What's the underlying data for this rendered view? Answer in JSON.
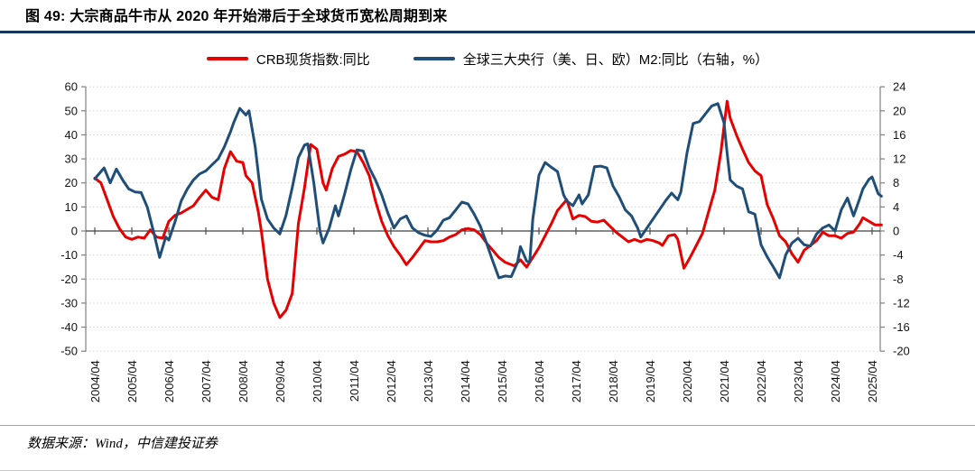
{
  "header": {
    "figure_title": "图 49: 大宗商品牛市从 2020 年开始滞后于全球货币宽松周期到来",
    "rule_color": "#17375e"
  },
  "legend": [
    {
      "label": "CRB现货指数:同比",
      "color": "#e60000"
    },
    {
      "label": "全球三大央行（美、日、欧）M2:同比（右轴，%）",
      "color": "#1f4e79"
    }
  ],
  "footer": {
    "source": "数据来源：Wind，中信建投证券"
  },
  "chart_data": {
    "type": "line",
    "title": "大宗商品牛市从 2020 年开始滞后于全球货币宽松周期到来",
    "grid": "horizontal-dotted",
    "legend_position": "top",
    "x_axis": {
      "tick_labels": [
        "2004/04",
        "2005/04",
        "2006/04",
        "2007/04",
        "2008/04",
        "2009/04",
        "2010/04",
        "2011/04",
        "2012/04",
        "2013/04",
        "2014/04",
        "2015/04",
        "2016/04",
        "2017/04",
        "2018/04",
        "2019/04",
        "2020/04",
        "2021/04",
        "2022/04",
        "2023/04",
        "2024/04",
        "2025/04"
      ]
    },
    "left_axis": {
      "min": -50,
      "max": 60,
      "step": 10,
      "ticks": [
        60,
        50,
        40,
        30,
        20,
        10,
        0,
        -10,
        -20,
        -30,
        -40,
        -50
      ]
    },
    "right_axis": {
      "min": -20,
      "max": 24,
      "step": 4,
      "label": "右轴，%",
      "ticks": [
        24,
        20,
        16,
        12,
        8,
        4,
        0,
        -4,
        -8,
        -12,
        -16,
        -20
      ]
    },
    "series": [
      {
        "name": "CRB现货指数:同比",
        "axis": "left",
        "color": "#e60000",
        "points": [
          [
            "2004/04",
            22
          ],
          [
            "2004/06",
            20
          ],
          [
            "2004/08",
            13
          ],
          [
            "2004/10",
            6
          ],
          [
            "2004/12",
            1
          ],
          [
            "2005/02",
            -2.5
          ],
          [
            "2005/04",
            -3.5
          ],
          [
            "2005/06",
            -2.5
          ],
          [
            "2005/08",
            -3
          ],
          [
            "2005/10",
            0.5
          ],
          [
            "2005/12",
            -2.5
          ],
          [
            "2006/02",
            -3
          ],
          [
            "2006/04",
            4
          ],
          [
            "2006/06",
            6.5
          ],
          [
            "2006/08",
            7.5
          ],
          [
            "2006/10",
            9
          ],
          [
            "2006/12",
            10.5
          ],
          [
            "2007/02",
            14
          ],
          [
            "2007/04",
            17
          ],
          [
            "2007/06",
            14
          ],
          [
            "2007/08",
            13
          ],
          [
            "2007/10",
            26
          ],
          [
            "2007/12",
            33
          ],
          [
            "2008/02",
            29
          ],
          [
            "2008/04",
            28.5
          ],
          [
            "2008/05",
            23
          ],
          [
            "2008/07",
            20
          ],
          [
            "2008/09",
            8
          ],
          [
            "2008/10",
            0
          ],
          [
            "2008/12",
            -20
          ],
          [
            "2009/02",
            -30
          ],
          [
            "2009/04",
            -36
          ],
          [
            "2009/06",
            -33
          ],
          [
            "2009/08",
            -26
          ],
          [
            "2009/10",
            3
          ],
          [
            "2009/12",
            18
          ],
          [
            "2010/02",
            36
          ],
          [
            "2010/04",
            34
          ],
          [
            "2010/06",
            20
          ],
          [
            "2010/07",
            17
          ],
          [
            "2010/09",
            26
          ],
          [
            "2010/11",
            31
          ],
          [
            "2011/01",
            32
          ],
          [
            "2011/03",
            33.5
          ],
          [
            "2011/05",
            33
          ],
          [
            "2011/07",
            28.5
          ],
          [
            "2011/09",
            23
          ],
          [
            "2011/11",
            12.5
          ],
          [
            "2012/01",
            4
          ],
          [
            "2012/03",
            -2
          ],
          [
            "2012/05",
            -6.5
          ],
          [
            "2012/07",
            -10
          ],
          [
            "2012/09",
            -14
          ],
          [
            "2012/11",
            -11
          ],
          [
            "2013/01",
            -7.5
          ],
          [
            "2013/03",
            -4
          ],
          [
            "2013/05",
            -4.5
          ],
          [
            "2013/07",
            -4.5
          ],
          [
            "2013/09",
            -4
          ],
          [
            "2013/11",
            -2.5
          ],
          [
            "2014/01",
            -1.5
          ],
          [
            "2014/03",
            0.5
          ],
          [
            "2014/05",
            1
          ],
          [
            "2014/07",
            0.5
          ],
          [
            "2014/09",
            -1.5
          ],
          [
            "2014/11",
            -5
          ],
          [
            "2015/01",
            -8
          ],
          [
            "2015/03",
            -11
          ],
          [
            "2015/05",
            -13
          ],
          [
            "2015/08",
            -14.5
          ],
          [
            "2015/10",
            -12
          ],
          [
            "2015/12",
            -15
          ],
          [
            "2016/02",
            -11
          ],
          [
            "2016/04",
            -7
          ],
          [
            "2016/06",
            -2
          ],
          [
            "2016/08",
            3
          ],
          [
            "2016/10",
            8.5
          ],
          [
            "2016/12",
            11.5
          ],
          [
            "2017/01",
            13
          ],
          [
            "2017/03",
            5
          ],
          [
            "2017/05",
            6.5
          ],
          [
            "2017/07",
            6
          ],
          [
            "2017/09",
            4
          ],
          [
            "2017/11",
            3.7
          ],
          [
            "2018/01",
            4.5
          ],
          [
            "2018/03",
            2
          ],
          [
            "2018/05",
            -0.5
          ],
          [
            "2018/07",
            -2.5
          ],
          [
            "2018/09",
            -4.5
          ],
          [
            "2018/11",
            -3.5
          ],
          [
            "2019/01",
            -4.5
          ],
          [
            "2019/03",
            -3.5
          ],
          [
            "2019/05",
            -4
          ],
          [
            "2019/07",
            -5
          ],
          [
            "2019/08",
            -6
          ],
          [
            "2019/10",
            -2
          ],
          [
            "2019/12",
            -1.5
          ],
          [
            "2020/01",
            -3.5
          ],
          [
            "2020/03",
            -15.5
          ],
          [
            "2020/05",
            -11
          ],
          [
            "2020/07",
            -6
          ],
          [
            "2020/09",
            -1
          ],
          [
            "2020/11",
            8
          ],
          [
            "2021/01",
            17
          ],
          [
            "2021/03",
            33
          ],
          [
            "2021/05",
            54
          ],
          [
            "2021/06",
            47
          ],
          [
            "2021/08",
            40
          ],
          [
            "2021/10",
            34
          ],
          [
            "2021/12",
            28.5
          ],
          [
            "2022/02",
            25
          ],
          [
            "2022/04",
            23
          ],
          [
            "2022/06",
            11
          ],
          [
            "2022/08",
            5
          ],
          [
            "2022/10",
            -2
          ],
          [
            "2022/12",
            -4.5
          ],
          [
            "2023/02",
            -9.5
          ],
          [
            "2023/04",
            -13
          ],
          [
            "2023/06",
            -8
          ],
          [
            "2023/08",
            -6
          ],
          [
            "2023/10",
            -4
          ],
          [
            "2023/12",
            -0.5
          ],
          [
            "2024/02",
            -2
          ],
          [
            "2024/04",
            -2
          ],
          [
            "2024/06",
            -3
          ],
          [
            "2024/08",
            -1
          ],
          [
            "2024/10",
            -0.5
          ],
          [
            "2024/12",
            3
          ],
          [
            "2025/01",
            5.5
          ],
          [
            "2025/03",
            4
          ],
          [
            "2025/05",
            2.5
          ],
          [
            "2025/07",
            2.5
          ]
        ]
      },
      {
        "name": "全球三大央行（美、日、欧）M2:同比（右轴，%）",
        "axis": "right",
        "color": "#1f4e79",
        "points": [
          [
            "2004/04",
            8.7
          ],
          [
            "2004/07",
            10.5
          ],
          [
            "2004/09",
            8
          ],
          [
            "2004/11",
            10.3
          ],
          [
            "2005/01",
            8.5
          ],
          [
            "2005/03",
            7
          ],
          [
            "2005/05",
            6.5
          ],
          [
            "2005/07",
            6.4
          ],
          [
            "2005/09",
            4
          ],
          [
            "2005/11",
            0
          ],
          [
            "2006/01",
            -4.4
          ],
          [
            "2006/03",
            -1
          ],
          [
            "2006/04",
            -1.5
          ],
          [
            "2006/06",
            1.5
          ],
          [
            "2006/08",
            5
          ],
          [
            "2006/10",
            7
          ],
          [
            "2006/12",
            8.5
          ],
          [
            "2007/02",
            9.5
          ],
          [
            "2007/04",
            10
          ],
          [
            "2007/06",
            11
          ],
          [
            "2007/08",
            12
          ],
          [
            "2007/10",
            14
          ],
          [
            "2007/12",
            16.5
          ],
          [
            "2008/01",
            18
          ],
          [
            "2008/03",
            20.4
          ],
          [
            "2008/05",
            19.3
          ],
          [
            "2008/06",
            20
          ],
          [
            "2008/08",
            14
          ],
          [
            "2008/10",
            5.3
          ],
          [
            "2008/12",
            2
          ],
          [
            "2009/02",
            0.5
          ],
          [
            "2009/04",
            -0.5
          ],
          [
            "2009/06",
            2.6
          ],
          [
            "2009/08",
            7.2
          ],
          [
            "2009/10",
            12.2
          ],
          [
            "2009/12",
            14.3
          ],
          [
            "2010/01",
            14.5
          ],
          [
            "2010/03",
            8
          ],
          [
            "2010/05",
            0
          ],
          [
            "2010/06",
            -2
          ],
          [
            "2010/08",
            0.5
          ],
          [
            "2010/10",
            4.2
          ],
          [
            "2010/11",
            2.5
          ],
          [
            "2011/01",
            6.2
          ],
          [
            "2011/03",
            10.2
          ],
          [
            "2011/05",
            13.5
          ],
          [
            "2011/07",
            13.3
          ],
          [
            "2011/09",
            10.5
          ],
          [
            "2011/11",
            8.5
          ],
          [
            "2012/01",
            6
          ],
          [
            "2012/03",
            3
          ],
          [
            "2012/05",
            0.5
          ],
          [
            "2012/07",
            2
          ],
          [
            "2012/09",
            2.5
          ],
          [
            "2012/11",
            0.5
          ],
          [
            "2013/01",
            -0.3
          ],
          [
            "2013/03",
            -0.7
          ],
          [
            "2013/05",
            -0.9
          ],
          [
            "2013/07",
            0.2
          ],
          [
            "2013/09",
            1.8
          ],
          [
            "2013/11",
            2.2
          ],
          [
            "2014/01",
            3.5
          ],
          [
            "2014/03",
            4.8
          ],
          [
            "2014/05",
            4.5
          ],
          [
            "2014/07",
            2.8
          ],
          [
            "2014/09",
            0.8
          ],
          [
            "2014/11",
            -2
          ],
          [
            "2015/01",
            -5
          ],
          [
            "2015/03",
            -7.8
          ],
          [
            "2015/05",
            -7.5
          ],
          [
            "2015/07",
            -7.6
          ],
          [
            "2015/09",
            -5.3
          ],
          [
            "2015/10",
            -2.6
          ],
          [
            "2015/12",
            -5
          ],
          [
            "2016/01",
            -5.2
          ],
          [
            "2016/02",
            2
          ],
          [
            "2016/04",
            9.3
          ],
          [
            "2016/06",
            11.4
          ],
          [
            "2016/08",
            10.6
          ],
          [
            "2016/10",
            9.9
          ],
          [
            "2016/12",
            6
          ],
          [
            "2017/01",
            5
          ],
          [
            "2017/03",
            4.2
          ],
          [
            "2017/05",
            6
          ],
          [
            "2017/06",
            4.5
          ],
          [
            "2017/08",
            6
          ],
          [
            "2017/10",
            10.7
          ],
          [
            "2017/12",
            10.8
          ],
          [
            "2018/02",
            10.5
          ],
          [
            "2018/04",
            7.5
          ],
          [
            "2018/06",
            5.7
          ],
          [
            "2018/08",
            3.5
          ],
          [
            "2018/10",
            2.5
          ],
          [
            "2018/12",
            0.5
          ],
          [
            "2019/01",
            -1
          ],
          [
            "2019/03",
            0.5
          ],
          [
            "2019/05",
            2
          ],
          [
            "2019/07",
            3.5
          ],
          [
            "2019/09",
            5
          ],
          [
            "2019/11",
            6.3
          ],
          [
            "2020/01",
            5.2
          ],
          [
            "2020/02",
            6.5
          ],
          [
            "2020/04",
            13
          ],
          [
            "2020/06",
            17.9
          ],
          [
            "2020/08",
            18.2
          ],
          [
            "2020/10",
            19.5
          ],
          [
            "2020/12",
            20.8
          ],
          [
            "2021/02",
            21.2
          ],
          [
            "2021/04",
            18
          ],
          [
            "2021/05",
            13
          ],
          [
            "2021/06",
            8.5
          ],
          [
            "2021/08",
            7.5
          ],
          [
            "2021/10",
            7
          ],
          [
            "2021/12",
            3.2
          ],
          [
            "2022/02",
            2.8
          ],
          [
            "2022/04",
            -2.3
          ],
          [
            "2022/06",
            -4.3
          ],
          [
            "2022/08",
            -6
          ],
          [
            "2022/10",
            -7.8
          ],
          [
            "2022/12",
            -4
          ],
          [
            "2023/02",
            -2
          ],
          [
            "2023/04",
            -1.2
          ],
          [
            "2023/06",
            -2.3
          ],
          [
            "2023/08",
            -2.5
          ],
          [
            "2023/10",
            -0.5
          ],
          [
            "2023/12",
            0.5
          ],
          [
            "2024/02",
            1
          ],
          [
            "2024/04",
            0
          ],
          [
            "2024/06",
            3.5
          ],
          [
            "2024/08",
            5.5
          ],
          [
            "2024/10",
            2.5
          ],
          [
            "2024/12",
            5.4
          ],
          [
            "2025/01",
            7
          ],
          [
            "2025/03",
            8.6
          ],
          [
            "2025/04",
            9
          ],
          [
            "2025/06",
            6.2
          ],
          [
            "2025/07",
            5.8
          ]
        ]
      }
    ]
  }
}
